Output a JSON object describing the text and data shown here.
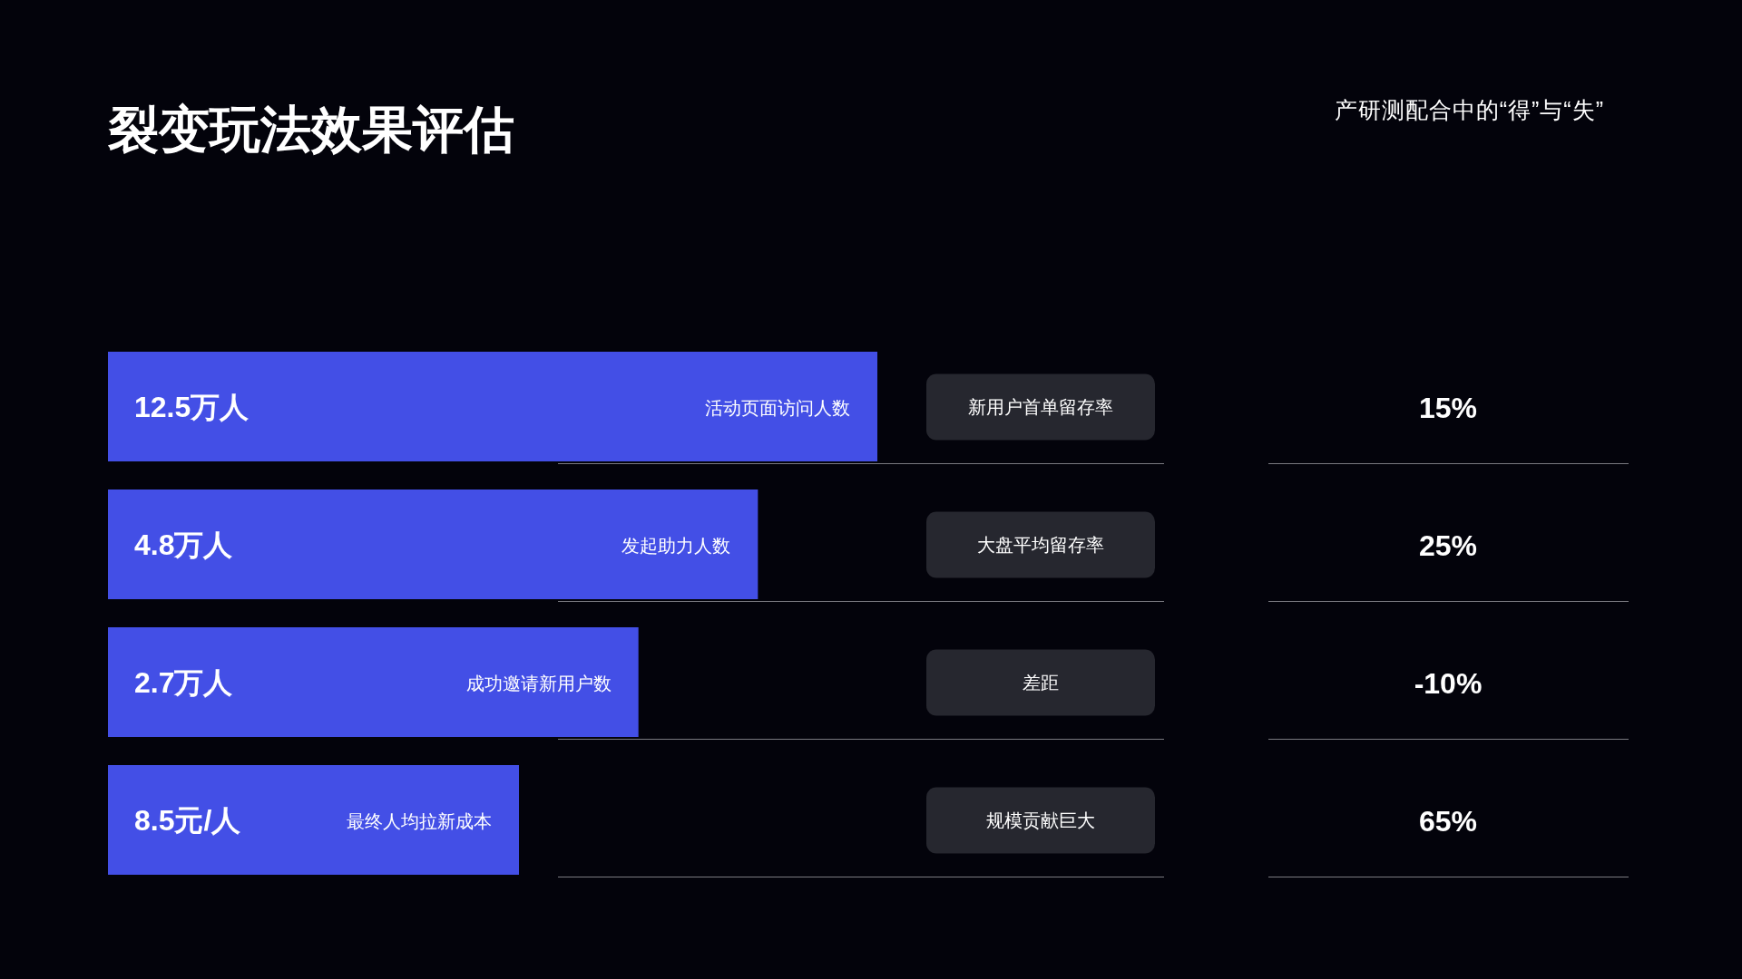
{
  "chart_data": [
    {
      "type": "other",
      "title": "裂变玩法效果评估",
      "categories": [
        "活动页面访问人数",
        "发起助力人数",
        "成功邀请新用户数",
        "最终人均拉新成本"
      ],
      "values": [
        12.5,
        4.8,
        2.7,
        8.5
      ],
      "value_labels": [
        "12.5万人",
        "4.8万人",
        "2.7万人",
        "8.5元/人"
      ],
      "color": "#434fe6"
    },
    {
      "type": "other",
      "subtitle": "产研测配合中的“得”与“失”",
      "categories": [
        "新用户首单留存率",
        "大盘平均留存率",
        "差距",
        "规模贡献巨大"
      ],
      "values": [
        15,
        25,
        -10,
        65
      ],
      "value_labels": [
        "15%",
        "25%",
        "-10%",
        "65%"
      ]
    }
  ]
}
